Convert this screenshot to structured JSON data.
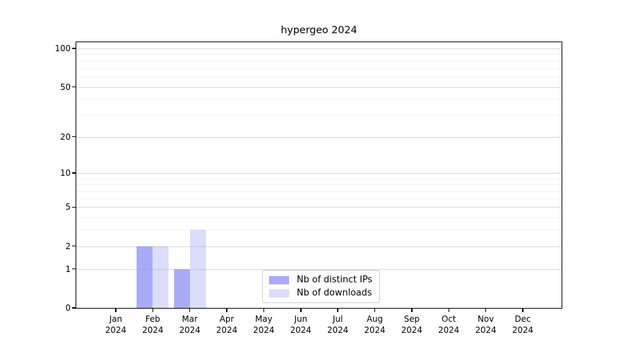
{
  "chart_data": {
    "type": "bar",
    "title": "hypergeo 2024",
    "categories": [
      {
        "month": "Jan",
        "year": "2024"
      },
      {
        "month": "Feb",
        "year": "2024"
      },
      {
        "month": "Mar",
        "year": "2024"
      },
      {
        "month": "Apr",
        "year": "2024"
      },
      {
        "month": "May",
        "year": "2024"
      },
      {
        "month": "Jun",
        "year": "2024"
      },
      {
        "month": "Jul",
        "year": "2024"
      },
      {
        "month": "Aug",
        "year": "2024"
      },
      {
        "month": "Sep",
        "year": "2024"
      },
      {
        "month": "Oct",
        "year": "2024"
      },
      {
        "month": "Nov",
        "year": "2024"
      },
      {
        "month": "Dec",
        "year": "2024"
      }
    ],
    "series": [
      {
        "name": "Nb of distinct IPs",
        "color": "rgba(140,143,244,0.75)",
        "values": [
          0,
          2,
          1,
          0,
          0,
          0,
          0,
          0,
          0,
          0,
          0,
          0
        ]
      },
      {
        "name": "Nb of downloads",
        "color": "rgba(140,143,244,0.3)",
        "values": [
          0,
          2,
          3,
          0,
          0,
          0,
          0,
          0,
          0,
          0,
          0,
          0
        ]
      }
    ],
    "y_axis": {
      "scale": "log10(1+y)",
      "tick_values": [
        0,
        1,
        2,
        5,
        10,
        20,
        50,
        100
      ],
      "minor_gridline_values": [
        3,
        4,
        6,
        7,
        8,
        9,
        30,
        40,
        60,
        70,
        80,
        90
      ],
      "range": [
        0,
        112
      ]
    },
    "legend_position": "lower center, inside plot",
    "grid": true
  },
  "colors": {
    "background": "#ffffff",
    "axis": "#000000",
    "major_grid": "#d8d8d8",
    "minor_grid": "#f1f1f1",
    "legend_border": "#cccccc",
    "text": "#000000"
  }
}
